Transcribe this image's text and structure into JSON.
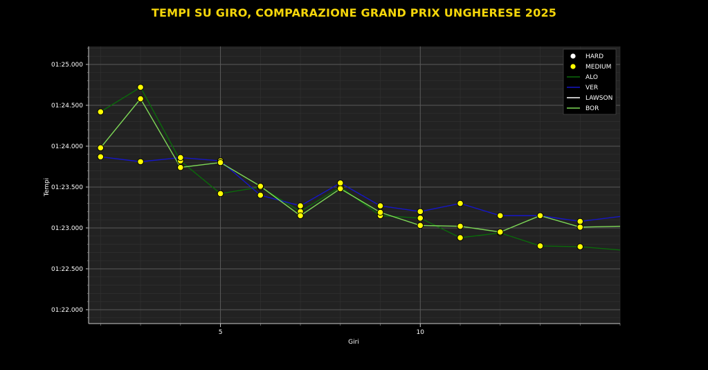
{
  "chart_data": {
    "type": "line",
    "title": "TEMPI SU GIRO, COMPARAZIONE GRAND PRIX UNGHERESE 2025",
    "xlabel": "Giri",
    "ylabel": "Tempi",
    "xlim": [
      1.7,
      15
    ],
    "ylim": [
      81.83,
      85.22
    ],
    "x_ticks": [
      5,
      10
    ],
    "y_ticks": [
      {
        "value": 82.0,
        "label": "01:22.000"
      },
      {
        "value": 82.5,
        "label": "01:22.500"
      },
      {
        "value": 83.0,
        "label": "01:23.000"
      },
      {
        "value": 83.5,
        "label": "01:23.500"
      },
      {
        "value": 84.0,
        "label": "01:24.000"
      },
      {
        "value": 84.5,
        "label": "01:24.500"
      },
      {
        "value": 85.0,
        "label": "01:25.000"
      }
    ],
    "grid": true,
    "legend_position": "top-right",
    "legend": [
      {
        "label": "HARD",
        "kind": "marker",
        "color": "#ffffff"
      },
      {
        "label": "MEDIUM",
        "kind": "marker",
        "color": "#ffff00"
      },
      {
        "label": "ALO",
        "kind": "line",
        "color": "#0a6b0a"
      },
      {
        "label": "VER",
        "kind": "line",
        "color": "#1616c8"
      },
      {
        "label": "LAWSON",
        "kind": "line",
        "color": "#ffffff"
      },
      {
        "label": "BOR",
        "kind": "line",
        "color": "#7ed957"
      }
    ],
    "series": [
      {
        "name": "ALO",
        "color": "#0a6b0a",
        "x": [
          2,
          3,
          4,
          5,
          6,
          7,
          8,
          9,
          10,
          11,
          12,
          13,
          14,
          15
        ],
        "y": [
          84.42,
          84.72,
          83.82,
          83.42,
          83.5,
          83.2,
          83.5,
          83.15,
          83.12,
          82.88,
          82.94,
          82.78,
          82.77,
          82.73
        ],
        "compound": "MEDIUM"
      },
      {
        "name": "VER",
        "color": "#1616c8",
        "x": [
          2,
          3,
          4,
          5,
          6,
          7,
          8,
          9,
          10,
          11,
          12,
          13,
          14,
          15
        ],
        "y": [
          83.87,
          83.81,
          83.86,
          83.82,
          83.4,
          83.27,
          83.55,
          83.27,
          83.2,
          83.3,
          83.15,
          83.15,
          83.08,
          83.14
        ],
        "compound": "MEDIUM"
      },
      {
        "name": "BOR",
        "color": "#7ed957",
        "x": [
          2,
          3,
          4,
          5,
          6,
          7,
          8,
          9,
          10,
          11,
          12,
          13,
          14,
          15
        ],
        "y": [
          83.98,
          84.58,
          83.74,
          83.8,
          83.51,
          83.15,
          83.48,
          83.19,
          83.03,
          83.02,
          82.95,
          83.15,
          83.01,
          83.02
        ],
        "compound": "MEDIUM"
      }
    ],
    "marker_color": "#ffff00",
    "marker_edge": "#000000"
  },
  "colors": {
    "background": "#000000",
    "plot_bg": "#222222",
    "grid_major": "#5a5a5a",
    "grid_minor": "#333333",
    "title": "#f5d60a"
  }
}
